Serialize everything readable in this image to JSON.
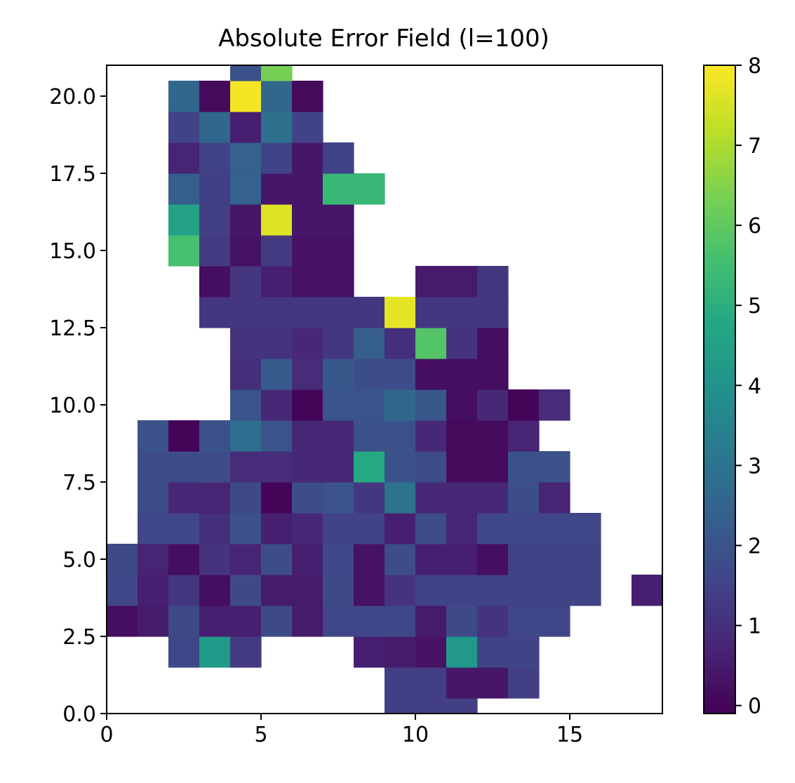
{
  "chart_data": {
    "type": "heatmap",
    "title": "Absolute Error Field (l=100)",
    "xlabel": "",
    "ylabel": "",
    "xlim": [
      0,
      18
    ],
    "ylim": [
      0,
      21
    ],
    "x_ticks": [
      0,
      5,
      10,
      15
    ],
    "x_tick_labels": [
      "0",
      "5",
      "10",
      "15"
    ],
    "y_ticks": [
      0,
      2.5,
      5,
      7.5,
      10,
      12.5,
      15,
      17.5,
      20
    ],
    "y_tick_labels": [
      "0.0",
      "2.5",
      "5.0",
      "7.5",
      "10.0",
      "12.5",
      "15.0",
      "17.5",
      "20.0"
    ],
    "cell_size": 1,
    "colormap": "viridis",
    "color_range": [
      -0.1,
      8
    ],
    "colorbar_ticks": [
      0,
      1,
      2,
      3,
      4,
      5,
      6,
      7,
      8
    ],
    "colorbar_tick_labels": [
      "0",
      "1",
      "2",
      "3",
      "4",
      "5",
      "6",
      "7",
      "8"
    ],
    "grid": false,
    "cells": [
      [
        9.5,
        0.0,
        1.4
      ],
      [
        10.5,
        0.0,
        1.4
      ],
      [
        11.5,
        0.0,
        1.4
      ],
      [
        9.5,
        1.0,
        1.4
      ],
      [
        10.5,
        1.0,
        1.4
      ],
      [
        11.5,
        1.0,
        0.4
      ],
      [
        12.5,
        1.0,
        0.4
      ],
      [
        13.5,
        1.0,
        1.4
      ],
      [
        2.5,
        2.0,
        1.6
      ],
      [
        3.5,
        2.0,
        4.3
      ],
      [
        4.5,
        2.0,
        1.3
      ],
      [
        8.5,
        2.0,
        0.6
      ],
      [
        9.5,
        2.0,
        0.5
      ],
      [
        10.5,
        2.0,
        0.3
      ],
      [
        11.5,
        2.0,
        4.2
      ],
      [
        12.5,
        2.0,
        1.5
      ],
      [
        13.5,
        2.0,
        1.5
      ],
      [
        -0.5,
        3.0,
        1.6
      ],
      [
        0.5,
        3.0,
        0.2
      ],
      [
        1.5,
        3.0,
        0.5
      ],
      [
        2.5,
        3.0,
        1.7
      ],
      [
        3.5,
        3.0,
        0.6
      ],
      [
        4.5,
        3.0,
        0.6
      ],
      [
        5.5,
        3.0,
        1.7
      ],
      [
        6.5,
        3.0,
        0.5
      ],
      [
        7.5,
        3.0,
        1.6
      ],
      [
        8.5,
        3.0,
        1.6
      ],
      [
        9.5,
        3.0,
        1.6
      ],
      [
        10.5,
        3.0,
        0.5
      ],
      [
        11.5,
        3.0,
        1.7
      ],
      [
        12.5,
        3.0,
        1.1
      ],
      [
        13.5,
        3.0,
        1.6
      ],
      [
        14.5,
        3.0,
        1.6
      ],
      [
        -0.5,
        4.0,
        1.6
      ],
      [
        0.5,
        4.0,
        1.6
      ],
      [
        1.5,
        4.0,
        0.6
      ],
      [
        2.5,
        4.0,
        1.2
      ],
      [
        3.5,
        4.0,
        0.2
      ],
      [
        4.5,
        4.0,
        1.7
      ],
      [
        5.5,
        4.0,
        0.5
      ],
      [
        6.5,
        4.0,
        0.5
      ],
      [
        7.5,
        4.0,
        1.7
      ],
      [
        8.5,
        4.0,
        0.3
      ],
      [
        9.5,
        4.0,
        1.1
      ],
      [
        10.5,
        4.0,
        1.5
      ],
      [
        11.5,
        4.0,
        1.5
      ],
      [
        12.5,
        4.0,
        1.5
      ],
      [
        13.5,
        4.0,
        1.5
      ],
      [
        14.5,
        4.0,
        1.5
      ],
      [
        15.5,
        4.0,
        1.5
      ],
      [
        17.5,
        4.0,
        0.6
      ],
      [
        0.5,
        5.0,
        1.7
      ],
      [
        1.5,
        5.0,
        0.7
      ],
      [
        2.5,
        5.0,
        0.2
      ],
      [
        3.5,
        5.0,
        1.1
      ],
      [
        4.5,
        5.0,
        0.7
      ],
      [
        5.5,
        5.0,
        1.8
      ],
      [
        6.5,
        5.0,
        0.6
      ],
      [
        7.5,
        5.0,
        1.6
      ],
      [
        8.5,
        5.0,
        0.3
      ],
      [
        9.5,
        5.0,
        1.8
      ],
      [
        10.5,
        5.0,
        0.6
      ],
      [
        11.5,
        5.0,
        0.6
      ],
      [
        12.5,
        5.0,
        0.2
      ],
      [
        13.5,
        5.0,
        1.5
      ],
      [
        14.5,
        5.0,
        1.5
      ],
      [
        15.5,
        5.0,
        1.5
      ],
      [
        1.5,
        6.0,
        1.6
      ],
      [
        2.5,
        6.0,
        1.6
      ],
      [
        3.5,
        6.0,
        1.0
      ],
      [
        4.5,
        6.0,
        1.9
      ],
      [
        5.5,
        6.0,
        0.6
      ],
      [
        6.5,
        6.0,
        0.8
      ],
      [
        7.5,
        6.0,
        1.5
      ],
      [
        8.5,
        6.0,
        1.5
      ],
      [
        9.5,
        6.0,
        0.6
      ],
      [
        10.5,
        6.0,
        1.8
      ],
      [
        11.5,
        6.0,
        0.7
      ],
      [
        12.5,
        6.0,
        1.6
      ],
      [
        13.5,
        6.0,
        1.6
      ],
      [
        14.5,
        6.0,
        1.6
      ],
      [
        15.5,
        6.0,
        1.6
      ],
      [
        1.5,
        7.0,
        1.8
      ],
      [
        2.5,
        7.0,
        0.8
      ],
      [
        3.5,
        7.0,
        0.7
      ],
      [
        4.5,
        7.0,
        1.7
      ],
      [
        5.5,
        7.0,
        0.0
      ],
      [
        6.5,
        7.0,
        1.8
      ],
      [
        7.5,
        7.0,
        2.0
      ],
      [
        8.5,
        7.0,
        1.2
      ],
      [
        9.5,
        7.0,
        3.0
      ],
      [
        10.5,
        7.0,
        0.8
      ],
      [
        11.5,
        7.0,
        0.8
      ],
      [
        12.5,
        7.0,
        0.8
      ],
      [
        13.5,
        7.0,
        1.8
      ],
      [
        14.5,
        7.0,
        0.7
      ],
      [
        1.5,
        8.0,
        1.8
      ],
      [
        2.5,
        8.0,
        1.8
      ],
      [
        3.5,
        8.0,
        1.8
      ],
      [
        4.5,
        8.0,
        0.9
      ],
      [
        5.5,
        8.0,
        0.9
      ],
      [
        6.5,
        8.0,
        0.8
      ],
      [
        7.5,
        8.0,
        0.8
      ],
      [
        8.5,
        8.0,
        4.8
      ],
      [
        9.5,
        8.0,
        1.9
      ],
      [
        10.5,
        8.0,
        1.8
      ],
      [
        11.5,
        8.0,
        0.1
      ],
      [
        12.5,
        8.0,
        0.1
      ],
      [
        13.5,
        8.0,
        1.9
      ],
      [
        14.5,
        8.0,
        1.9
      ],
      [
        1.5,
        9.0,
        1.9
      ],
      [
        2.5,
        9.0,
        0.0
      ],
      [
        3.5,
        9.0,
        1.9
      ],
      [
        4.5,
        9.0,
        2.8
      ],
      [
        5.5,
        9.0,
        2.0
      ],
      [
        6.5,
        9.0,
        0.8
      ],
      [
        7.5,
        9.0,
        0.8
      ],
      [
        8.5,
        9.0,
        1.9
      ],
      [
        9.5,
        9.0,
        1.9
      ],
      [
        10.5,
        9.0,
        0.8
      ],
      [
        11.5,
        9.0,
        0.1
      ],
      [
        12.5,
        9.0,
        0.1
      ],
      [
        13.5,
        9.0,
        0.7
      ],
      [
        4.5,
        10.0,
        2.0
      ],
      [
        5.5,
        10.0,
        0.8
      ],
      [
        6.5,
        10.0,
        0.0
      ],
      [
        7.5,
        10.0,
        2.0
      ],
      [
        8.5,
        10.0,
        2.0
      ],
      [
        9.5,
        10.0,
        2.6
      ],
      [
        10.5,
        10.0,
        2.1
      ],
      [
        11.5,
        10.0,
        0.2
      ],
      [
        12.5,
        10.0,
        0.8
      ],
      [
        13.5,
        10.0,
        0.0
      ],
      [
        14.5,
        10.0,
        0.9
      ],
      [
        4.5,
        11.0,
        1.0
      ],
      [
        5.5,
        11.0,
        2.2
      ],
      [
        6.5,
        11.0,
        0.9
      ],
      [
        7.5,
        11.0,
        2.1
      ],
      [
        8.5,
        11.0,
        1.8
      ],
      [
        9.5,
        11.0,
        1.8
      ],
      [
        10.5,
        11.0,
        0.2
      ],
      [
        11.5,
        11.0,
        0.2
      ],
      [
        12.5,
        11.0,
        0.2
      ],
      [
        4.5,
        12.0,
        1.1
      ],
      [
        5.5,
        12.0,
        1.1
      ],
      [
        6.5,
        12.0,
        0.8
      ],
      [
        7.5,
        12.0,
        1.2
      ],
      [
        8.5,
        12.0,
        2.3
      ],
      [
        9.5,
        12.0,
        1.0
      ],
      [
        10.5,
        12.0,
        5.8
      ],
      [
        11.5,
        12.0,
        1.1
      ],
      [
        12.5,
        12.0,
        0.2
      ],
      [
        3.5,
        13.0,
        1.2
      ],
      [
        4.5,
        13.0,
        1.2
      ],
      [
        5.5,
        13.0,
        1.2
      ],
      [
        6.5,
        13.0,
        1.2
      ],
      [
        7.5,
        13.0,
        1.2
      ],
      [
        8.5,
        13.0,
        1.2
      ],
      [
        9.5,
        13.0,
        7.7
      ],
      [
        10.5,
        13.0,
        1.2
      ],
      [
        11.5,
        13.0,
        1.2
      ],
      [
        12.5,
        13.0,
        1.2
      ],
      [
        3.5,
        14.0,
        0.2
      ],
      [
        4.5,
        14.0,
        1.2
      ],
      [
        5.5,
        14.0,
        0.6
      ],
      [
        6.5,
        14.0,
        0.3
      ],
      [
        7.5,
        14.0,
        0.3
      ],
      [
        10.5,
        14.0,
        0.5
      ],
      [
        11.5,
        14.0,
        0.5
      ],
      [
        12.5,
        14.0,
        1.2
      ],
      [
        2.5,
        15.0,
        5.6
      ],
      [
        3.5,
        15.0,
        1.3
      ],
      [
        4.5,
        15.0,
        0.3
      ],
      [
        5.5,
        15.0,
        1.3
      ],
      [
        6.5,
        15.0,
        0.3
      ],
      [
        7.5,
        15.0,
        0.3
      ],
      [
        2.5,
        16.0,
        4.5
      ],
      [
        3.5,
        16.0,
        1.4
      ],
      [
        4.5,
        16.0,
        0.4
      ],
      [
        5.5,
        16.0,
        7.6
      ],
      [
        6.5,
        16.0,
        0.4
      ],
      [
        7.5,
        16.0,
        0.4
      ],
      [
        2.5,
        17.0,
        2.3
      ],
      [
        3.5,
        17.0,
        1.4
      ],
      [
        4.5,
        17.0,
        2.4
      ],
      [
        5.5,
        17.0,
        0.4
      ],
      [
        6.5,
        17.0,
        0.4
      ],
      [
        7.5,
        17.0,
        5.3
      ],
      [
        8.5,
        17.0,
        5.3
      ],
      [
        2.5,
        18.0,
        0.7
      ],
      [
        3.5,
        18.0,
        1.5
      ],
      [
        4.5,
        18.0,
        2.4
      ],
      [
        5.5,
        18.0,
        1.5
      ],
      [
        6.5,
        18.0,
        0.4
      ],
      [
        7.5,
        18.0,
        1.5
      ],
      [
        2.5,
        19.0,
        1.5
      ],
      [
        3.5,
        19.0,
        2.6
      ],
      [
        4.5,
        19.0,
        0.6
      ],
      [
        5.5,
        19.0,
        2.9
      ],
      [
        6.5,
        19.0,
        1.5
      ],
      [
        2.5,
        20.0,
        2.6
      ],
      [
        3.5,
        20.0,
        0.1
      ],
      [
        4.5,
        20.0,
        7.9
      ],
      [
        5.5,
        20.0,
        2.6
      ],
      [
        6.5,
        20.0,
        0.1
      ],
      [
        4.5,
        21.0,
        1.9
      ],
      [
        5.5,
        21.0,
        6.3
      ]
    ]
  }
}
